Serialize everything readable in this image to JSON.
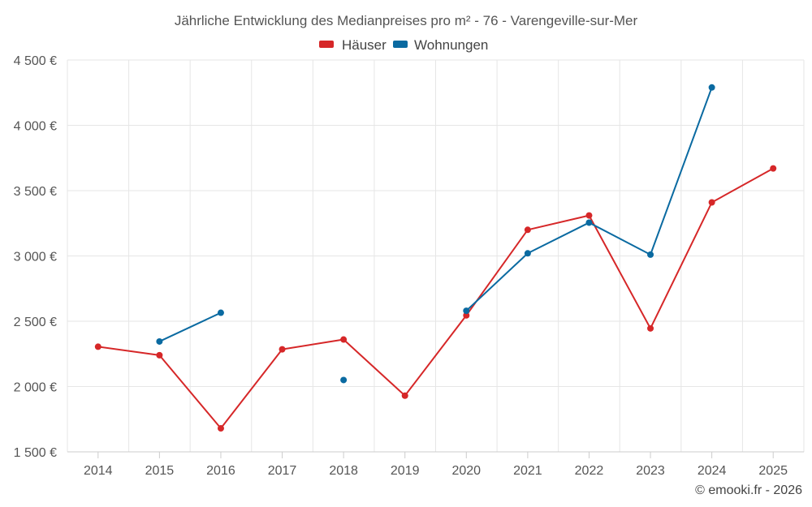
{
  "chart_data": {
    "type": "line",
    "title": "Jährliche Entwicklung des Medianpreises pro m² - 76 - Varengeville-sur-Mer",
    "categories": [
      "2014",
      "2015",
      "2016",
      "2017",
      "2018",
      "2019",
      "2020",
      "2021",
      "2022",
      "2023",
      "2024",
      "2025"
    ],
    "ylim": [
      1500,
      4500
    ],
    "yticks": [
      1500,
      2000,
      2500,
      3000,
      3500,
      4000,
      4500
    ],
    "ytick_labels": [
      "1 500 €",
      "2 000 €",
      "2 500 €",
      "3 000 €",
      "3 500 €",
      "4 000 €",
      "4 500 €"
    ],
    "grid": true,
    "legend_position": "top-center",
    "series": [
      {
        "name": "Häuser",
        "color": "#d62728",
        "values": [
          2305,
          2240,
          1680,
          2285,
          2360,
          1930,
          2545,
          3200,
          3310,
          2445,
          3410,
          3670
        ]
      },
      {
        "name": "Wohnungen",
        "color": "#0a6aa1",
        "values": [
          null,
          2345,
          2565,
          null,
          2050,
          null,
          2580,
          3020,
          3255,
          3010,
          4290,
          null
        ]
      }
    ],
    "credit": "© emooki.fr - 2026"
  }
}
